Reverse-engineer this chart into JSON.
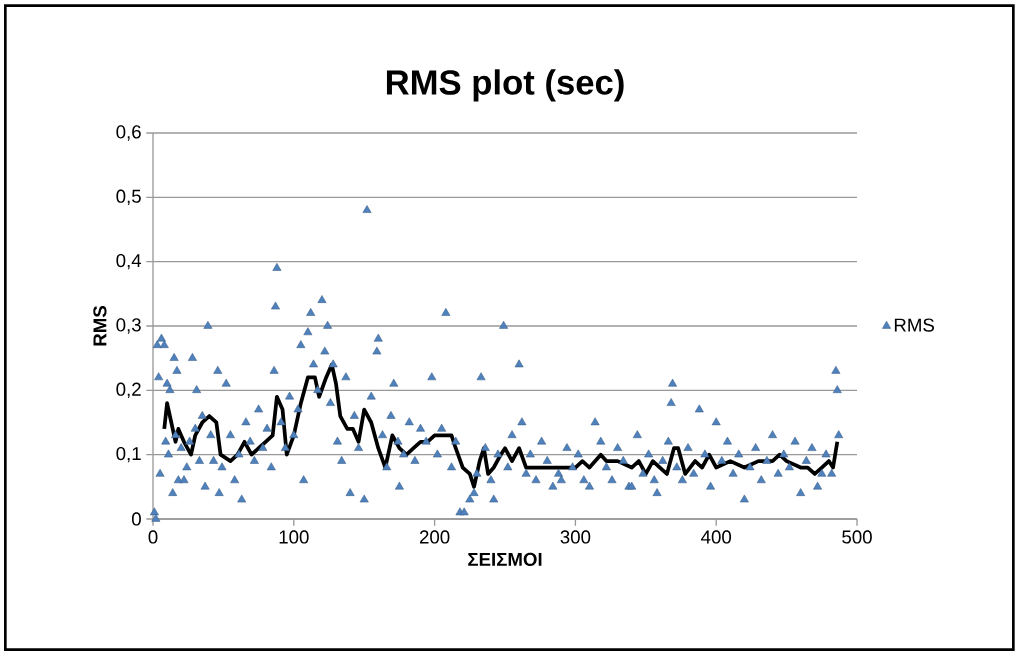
{
  "chart_data": {
    "type": "scatter",
    "title": "RMS plot (sec)",
    "xlabel": "ΣΕΙΣΜΟΙ",
    "ylabel": "RMS",
    "xlim": [
      0,
      500
    ],
    "ylim": [
      0,
      0.6
    ],
    "xticks": [
      0,
      100,
      200,
      300,
      400,
      500
    ],
    "yticks": [
      {
        "value": 0,
        "label": "0"
      },
      {
        "value": 0.1,
        "label": "0,1"
      },
      {
        "value": 0.2,
        "label": "0,2"
      },
      {
        "value": 0.3,
        "label": "0,3"
      },
      {
        "value": 0.4,
        "label": "0,4"
      },
      {
        "value": 0.5,
        "label": "0,5"
      },
      {
        "value": 0.6,
        "label": "0,6"
      }
    ],
    "grid": "y",
    "legend": "right",
    "series": [
      {
        "name": "RMS",
        "color": "#4f81bd",
        "marker": "triangle",
        "x": [
          1,
          2,
          3,
          4,
          5,
          6,
          8,
          9,
          10,
          11,
          12,
          14,
          15,
          16,
          17,
          18,
          20,
          22,
          24,
          26,
          28,
          30,
          31,
          33,
          35,
          37,
          39,
          41,
          43,
          46,
          47,
          49,
          52,
          55,
          58,
          61,
          63,
          66,
          69,
          72,
          75,
          78,
          81,
          84,
          86,
          87,
          88,
          91,
          94,
          97,
          100,
          103,
          105,
          107,
          110,
          112,
          114,
          117,
          120,
          122,
          124,
          126,
          128,
          131,
          134,
          137,
          140,
          143,
          146,
          150,
          152,
          155,
          159,
          160,
          163,
          166,
          169,
          171,
          174,
          175,
          178,
          182,
          186,
          190,
          194,
          198,
          202,
          205,
          208,
          212,
          215,
          218,
          221,
          225,
          228,
          230,
          233,
          236,
          240,
          242,
          245,
          249,
          252,
          255,
          260,
          262,
          265,
          268,
          272,
          276,
          280,
          284,
          288,
          290,
          294,
          298,
          302,
          306,
          310,
          314,
          318,
          322,
          326,
          330,
          334,
          338,
          340,
          344,
          348,
          352,
          356,
          358,
          362,
          366,
          368,
          369,
          372,
          376,
          380,
          384,
          388,
          392,
          396,
          400,
          404,
          408,
          412,
          416,
          420,
          424,
          428,
          432,
          436,
          440,
          444,
          448,
          452,
          456,
          460,
          464,
          468,
          472,
          475,
          478,
          482,
          485,
          486,
          487
        ],
        "values": [
          0.01,
          0.0,
          0.27,
          0.22,
          0.07,
          0.28,
          0.27,
          0.12,
          0.21,
          0.1,
          0.2,
          0.04,
          0.25,
          0.13,
          0.23,
          0.06,
          0.11,
          0.06,
          0.08,
          0.12,
          0.25,
          0.14,
          0.2,
          0.09,
          0.16,
          0.05,
          0.3,
          0.13,
          0.09,
          0.23,
          0.04,
          0.08,
          0.21,
          0.13,
          0.06,
          0.1,
          0.03,
          0.15,
          0.12,
          0.09,
          0.17,
          0.11,
          0.14,
          0.08,
          0.23,
          0.33,
          0.39,
          0.15,
          0.11,
          0.19,
          0.13,
          0.17,
          0.27,
          0.06,
          0.29,
          0.32,
          0.24,
          0.2,
          0.34,
          0.26,
          0.3,
          0.18,
          0.24,
          0.12,
          0.09,
          0.22,
          0.04,
          0.16,
          0.11,
          0.03,
          0.48,
          0.19,
          0.26,
          0.28,
          0.13,
          0.08,
          0.16,
          0.21,
          0.12,
          0.05,
          0.1,
          0.15,
          0.09,
          0.14,
          0.12,
          0.22,
          0.1,
          0.14,
          0.32,
          0.08,
          0.12,
          0.01,
          0.01,
          0.03,
          0.04,
          0.07,
          0.22,
          0.11,
          0.06,
          0.03,
          0.1,
          0.3,
          0.08,
          0.13,
          0.24,
          0.15,
          0.07,
          0.1,
          0.06,
          0.12,
          0.09,
          0.05,
          0.07,
          0.06,
          0.11,
          0.08,
          0.1,
          0.06,
          0.05,
          0.15,
          0.12,
          0.08,
          0.06,
          0.11,
          0.09,
          0.05,
          0.05,
          0.13,
          0.07,
          0.1,
          0.06,
          0.04,
          0.09,
          0.12,
          0.18,
          0.21,
          0.08,
          0.06,
          0.11,
          0.07,
          0.17,
          0.1,
          0.05,
          0.15,
          0.09,
          0.12,
          0.07,
          0.1,
          0.03,
          0.08,
          0.11,
          0.06,
          0.09,
          0.13,
          0.07,
          0.1,
          0.08,
          0.12,
          0.04,
          0.09,
          0.11,
          0.05,
          0.07,
          0.1,
          0.07,
          0.23,
          0.2,
          0.13
        ]
      },
      {
        "type": "line",
        "color": "#000000",
        "marker": "none",
        "x": [
          8,
          10,
          13,
          16,
          18,
          22,
          27,
          30,
          35,
          40,
          45,
          48,
          55,
          60,
          65,
          70,
          75,
          80,
          85,
          88,
          92,
          95,
          100,
          105,
          110,
          115,
          118,
          123,
          127,
          130,
          133,
          138,
          142,
          146,
          150,
          155,
          160,
          165,
          170,
          175,
          180,
          185,
          190,
          195,
          200,
          205,
          212,
          215,
          220,
          225,
          228,
          232,
          235,
          238,
          242,
          247,
          250,
          255,
          260,
          265,
          270,
          280,
          290,
          300,
          305,
          310,
          318,
          322,
          330,
          340,
          345,
          350,
          355,
          360,
          365,
          370,
          373,
          378,
          385,
          390,
          395,
          400,
          410,
          420,
          430,
          440,
          445,
          450,
          460,
          465,
          470,
          475,
          480,
          483,
          486
        ],
        "values": [
          0.14,
          0.18,
          0.15,
          0.12,
          0.14,
          0.12,
          0.1,
          0.13,
          0.15,
          0.16,
          0.15,
          0.1,
          0.09,
          0.1,
          0.12,
          0.1,
          0.11,
          0.12,
          0.13,
          0.19,
          0.17,
          0.1,
          0.13,
          0.18,
          0.22,
          0.22,
          0.19,
          0.22,
          0.24,
          0.21,
          0.16,
          0.14,
          0.14,
          0.12,
          0.17,
          0.15,
          0.11,
          0.08,
          0.13,
          0.11,
          0.1,
          0.11,
          0.12,
          0.12,
          0.13,
          0.13,
          0.13,
          0.11,
          0.08,
          0.07,
          0.05,
          0.09,
          0.11,
          0.07,
          0.08,
          0.1,
          0.11,
          0.09,
          0.11,
          0.08,
          0.08,
          0.08,
          0.08,
          0.08,
          0.09,
          0.08,
          0.1,
          0.09,
          0.09,
          0.08,
          0.09,
          0.07,
          0.09,
          0.08,
          0.07,
          0.11,
          0.11,
          0.07,
          0.09,
          0.08,
          0.1,
          0.08,
          0.09,
          0.08,
          0.09,
          0.09,
          0.1,
          0.09,
          0.08,
          0.08,
          0.07,
          0.08,
          0.09,
          0.08,
          0.12
        ]
      }
    ]
  }
}
